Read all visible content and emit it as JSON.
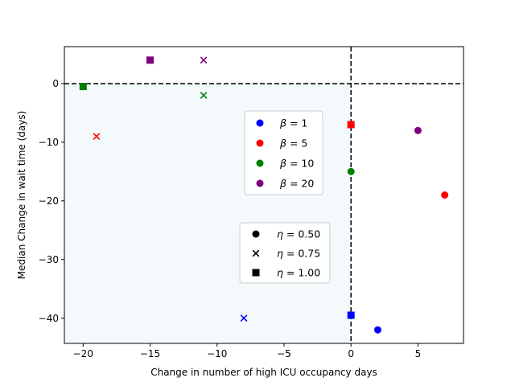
{
  "chart_data": {
    "type": "scatter",
    "title": "",
    "xlabel": "Change in number of high ICU occupancy days",
    "ylabel": "Median Change in wait time (days)",
    "xlim": [
      -21.4,
      8.4
    ],
    "ylim": [
      -44.3,
      6.3
    ],
    "xticks": [
      -20,
      -15,
      -10,
      -5,
      0,
      5
    ],
    "xtick_labels": [
      "−20",
      "−15",
      "−10",
      "−5",
      "0",
      "5"
    ],
    "yticks": [
      -40,
      -30,
      -20,
      -10,
      0
    ],
    "ytick_labels": [
      "−40",
      "−30",
      "−20",
      "−10",
      "0"
    ],
    "reference_lines": {
      "vertical_x": 0,
      "horizontal_y": 0,
      "style": "dashed"
    },
    "shaded_region": {
      "x": [
        -21.4,
        0
      ],
      "y": [
        -44.3,
        0
      ],
      "color": "#f4fafb"
    },
    "colors": {
      "1": "#0000ff",
      "5": "#ff0000",
      "10": "#008000",
      "20": "#800080"
    },
    "points": [
      {
        "beta": 1,
        "eta": 0.5,
        "x": 2,
        "y": -42
      },
      {
        "beta": 1,
        "eta": 0.75,
        "x": -8,
        "y": -40
      },
      {
        "beta": 1,
        "eta": 1.0,
        "x": 0,
        "y": -39.5
      },
      {
        "beta": 5,
        "eta": 0.5,
        "x": 7,
        "y": -19
      },
      {
        "beta": 5,
        "eta": 0.75,
        "x": -19,
        "y": -9
      },
      {
        "beta": 5,
        "eta": 1.0,
        "x": 0,
        "y": -7
      },
      {
        "beta": 10,
        "eta": 0.5,
        "x": 0,
        "y": -15
      },
      {
        "beta": 10,
        "eta": 0.75,
        "x": -11,
        "y": -2
      },
      {
        "beta": 10,
        "eta": 1.0,
        "x": -20,
        "y": -0.5
      },
      {
        "beta": 20,
        "eta": 0.5,
        "x": 5,
        "y": -8
      },
      {
        "beta": 20,
        "eta": 0.75,
        "x": -11,
        "y": 4
      },
      {
        "beta": 20,
        "eta": 1.0,
        "x": -15,
        "y": 4
      }
    ],
    "legend_beta": {
      "placement": "center",
      "entries": [
        {
          "symbol": "β",
          "rest": " = 1",
          "color": "#0000ff"
        },
        {
          "symbol": "β",
          "rest": " = 5",
          "color": "#ff0000"
        },
        {
          "symbol": "β",
          "rest": " = 10",
          "color": "#008000"
        },
        {
          "symbol": "β",
          "rest": " = 20",
          "color": "#800080"
        }
      ]
    },
    "legend_eta": {
      "placement": "lower-center",
      "entries": [
        {
          "symbol": "η",
          "rest": " = 0.50",
          "marker": "circle"
        },
        {
          "symbol": "η",
          "rest": " = 0.75",
          "marker": "x"
        },
        {
          "symbol": "η",
          "rest": " = 1.00",
          "marker": "square"
        }
      ]
    }
  }
}
